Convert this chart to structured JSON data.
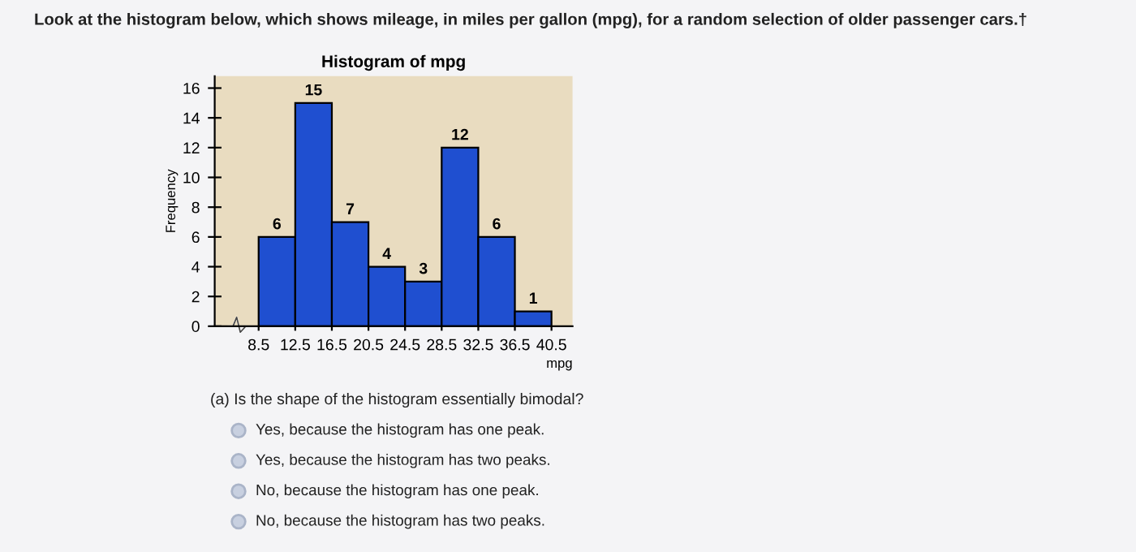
{
  "chart_data": {
    "type": "histogram",
    "title": "Histogram of mpg",
    "xlabel": "mpg",
    "ylabel": "Frequency",
    "bins": [
      8.5,
      12.5,
      16.5,
      20.5,
      24.5,
      28.5,
      32.5,
      36.5,
      40.5
    ],
    "values": [
      6,
      15,
      7,
      4,
      3,
      12,
      6,
      1
    ],
    "color": "#1f4fd0",
    "data_labels": true,
    "xlim": [
      3.7,
      42.8
    ],
    "xticks": [
      8.5,
      12.5,
      16.5,
      20.5,
      24.5,
      28.5,
      32.5,
      36.5,
      40.5
    ],
    "ylim": [
      0,
      16.8
    ],
    "yticks": [
      0,
      2,
      4,
      6,
      8,
      10,
      12,
      14,
      16
    ],
    "grid": false,
    "annotations": [
      "Look at the histogram below, which shows mileage, in miles per gallon (mpg), for a random selection of older passenger cars.†",
      "(a) Is the shape of the histogram essentially bimodal?",
      "Yes, because the histogram has one peak.",
      "Yes, because the histogram has two peaks.",
      "No, because the histogram has one peak.",
      "No, because the histogram has two peaks."
    ]
  }
}
